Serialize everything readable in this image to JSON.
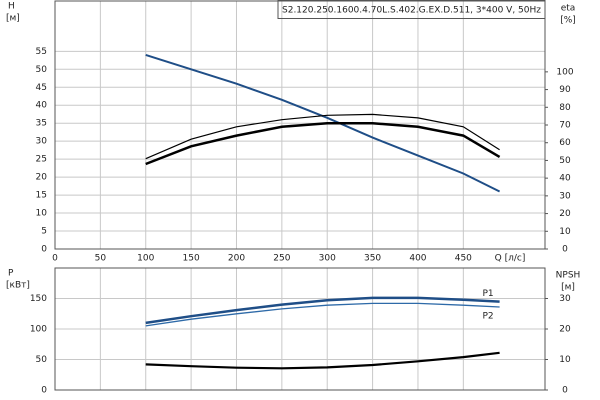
{
  "chart_data": [
    {
      "type": "line",
      "title": "S2.120.250.1600.4.70L.S.402.G.EX.D.511, 3*400 V, 50Hz",
      "y_label": "H",
      "y_unit": "[м]",
      "y2_label": "eta",
      "y2_unit": "[%]",
      "x_label": "Q [л/с]",
      "x": [
        100,
        150,
        200,
        250,
        300,
        350,
        400,
        450,
        490
      ],
      "xlim": [
        0,
        540
      ],
      "xticks": [
        0,
        50,
        100,
        150,
        200,
        250,
        300,
        350,
        400,
        450
      ],
      "ylim": [
        0,
        69
      ],
      "yticks": [
        0,
        5,
        10,
        15,
        20,
        25,
        30,
        35,
        40,
        45,
        50,
        55
      ],
      "y2lim": [
        0,
        140
      ],
      "y2ticks": [
        0,
        10,
        20,
        30,
        40,
        50,
        60,
        70,
        80,
        90,
        100
      ],
      "grid": true,
      "series": [
        {
          "color": "#1f4e87",
          "values": [
            54,
            50,
            46,
            41.5,
            36.5,
            31,
            26,
            21,
            16
          ]
        },
        {
          "color": "#000000",
          "axis": "y2",
          "values": [
            48,
            58,
            64,
            69,
            71,
            71,
            69,
            64,
            52
          ]
        },
        {
          "color": "#000000",
          "axis": "y2",
          "values": [
            51,
            62,
            69,
            73,
            75.5,
            76,
            74,
            69,
            56
          ]
        }
      ]
    },
    {
      "type": "line",
      "y_label": "P",
      "y_unit": "[кВт]",
      "y2_label": "NPSH",
      "y2_unit": "[м]",
      "x": [
        100,
        150,
        200,
        250,
        300,
        350,
        400,
        450,
        490
      ],
      "xlim": [
        0,
        540
      ],
      "xticks": [
        0,
        50,
        100,
        150,
        200,
        250,
        300,
        350,
        400,
        450
      ],
      "ylim": [
        0,
        200
      ],
      "yticks": [
        0,
        50,
        100,
        150
      ],
      "y2lim": [
        0,
        40
      ],
      "y2ticks": [
        0,
        10,
        20,
        30
      ],
      "grid": true,
      "series": [
        {
          "name": "P1",
          "color": "#1f4e87",
          "values": [
            110,
            121,
            131,
            140,
            147,
            151,
            151,
            148,
            145
          ]
        },
        {
          "name": "P2",
          "color": "#2e6aa8",
          "values": [
            105,
            116,
            125,
            133,
            139,
            142,
            142,
            139,
            136
          ]
        },
        {
          "color": "#000000",
          "axis": "y2",
          "values": [
            8.4,
            7.8,
            7.3,
            7.1,
            7.4,
            8.2,
            9.4,
            10.8,
            12.2
          ]
        }
      ]
    }
  ]
}
